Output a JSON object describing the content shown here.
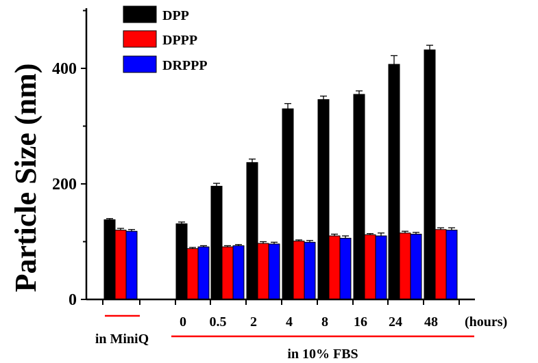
{
  "chart_data": {
    "type": "bar",
    "ylabel": "Particle Size (nm)",
    "ylim": [
      0,
      500
    ],
    "yticks": [
      0,
      200,
      400
    ],
    "units_label": "(hours)",
    "group_labels": {
      "miniq": "in MiniQ",
      "fbs": "in 10% FBS"
    },
    "categories": [
      "",
      "0",
      "0.5",
      "2",
      "4",
      "8",
      "16",
      "24",
      "48"
    ],
    "series": [
      {
        "name": "DPP",
        "color": "#000000",
        "values": [
          138,
          131,
          196,
          237,
          330,
          346,
          355,
          407,
          432
        ],
        "errors": [
          2,
          3,
          5,
          6,
          9,
          6,
          6,
          15,
          8
        ]
      },
      {
        "name": "DPPP",
        "color": "#ff0000",
        "values": [
          120,
          88,
          91,
          97,
          101,
          110,
          112,
          115,
          121
        ],
        "errors": [
          3,
          2,
          2,
          3,
          2,
          3,
          2,
          3,
          3
        ]
      },
      {
        "name": "DRPPP",
        "color": "#0000ff",
        "values": [
          118,
          91,
          93,
          96,
          99,
          106,
          110,
          113,
          120
        ],
        "errors": [
          3,
          2,
          2,
          3,
          3,
          4,
          5,
          3,
          4
        ]
      }
    ]
  }
}
